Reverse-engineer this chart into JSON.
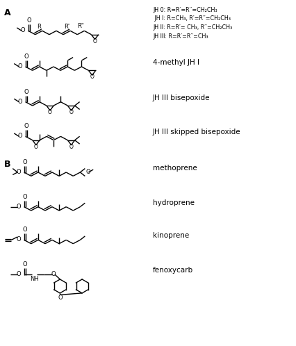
{
  "background_color": "#ffffff",
  "line_color": "#000000",
  "lw": 1.0,
  "jh_text_lines": [
    "JH 0: R=R′=R′′=CH₂CH₃",
    " JH I: R=CH₃, R′=R′′=CH₂CH₃",
    "JH II: R=R′= CH₃, R′′=CH₂CH₃",
    "JH III: R=R′=R′′=CH₃"
  ],
  "label_4methyl": "4-methyl JH I",
  "label_jhbis": "JH III bisepoxide",
  "label_jhskip": "JH III skipped bisepoxide",
  "label_methoprene": "methoprene",
  "label_hydroprene": "hydroprene",
  "label_kinoprene": "kinoprene",
  "label_fenoxycarb": "fenoxycarb"
}
